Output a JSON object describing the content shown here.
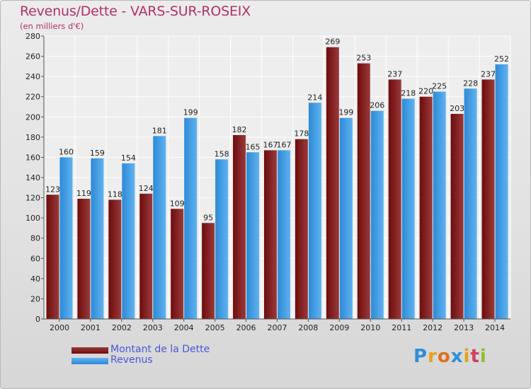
{
  "title": "Revenus/Dette - VARS-SUR-ROSEIX",
  "subtitle": "(en milliers d'€)",
  "legend": {
    "debt_label": "Montant de la Dette",
    "revenue_label": "Revenus"
  },
  "logo": {
    "letters": [
      "P",
      "r",
      "o",
      "x",
      "i",
      "t",
      "i"
    ],
    "colors": [
      "#2e8fd8",
      "#e8a020",
      "#e07020",
      "#2e8fd8",
      "#e8a020",
      "#d04060",
      "#8bc030"
    ]
  },
  "colors": {
    "debt": "#6e0c0c",
    "debt_light": "#9a3a3a",
    "revenue": "#2d8ad6",
    "revenue_light": "#5fb2f0"
  },
  "chart_data": {
    "type": "bar",
    "title": "Revenus/Dette - VARS-SUR-ROSEIX",
    "ylabel": "(en milliers d'€)",
    "xlabel": "",
    "ylim": [
      0,
      280
    ],
    "yticks": [
      0,
      20,
      40,
      60,
      80,
      100,
      120,
      140,
      160,
      180,
      200,
      220,
      240,
      260,
      280
    ],
    "grid": true,
    "legend_position": "bottom-left",
    "categories": [
      "2000",
      "2001",
      "2002",
      "2003",
      "2004",
      "2005",
      "2006",
      "2007",
      "2008",
      "2009",
      "2010",
      "2011",
      "2012",
      "2013",
      "2014"
    ],
    "series": [
      {
        "name": "Montant de la Dette",
        "values": [
          123,
          119,
          118,
          124,
          109,
          95,
          182,
          167,
          178,
          269,
          253,
          237,
          220,
          203,
          237
        ]
      },
      {
        "name": "Revenus",
        "values": [
          160,
          159,
          154,
          181,
          199,
          158,
          165,
          167,
          214,
          199,
          206,
          218,
          225,
          228,
          252
        ]
      }
    ]
  }
}
